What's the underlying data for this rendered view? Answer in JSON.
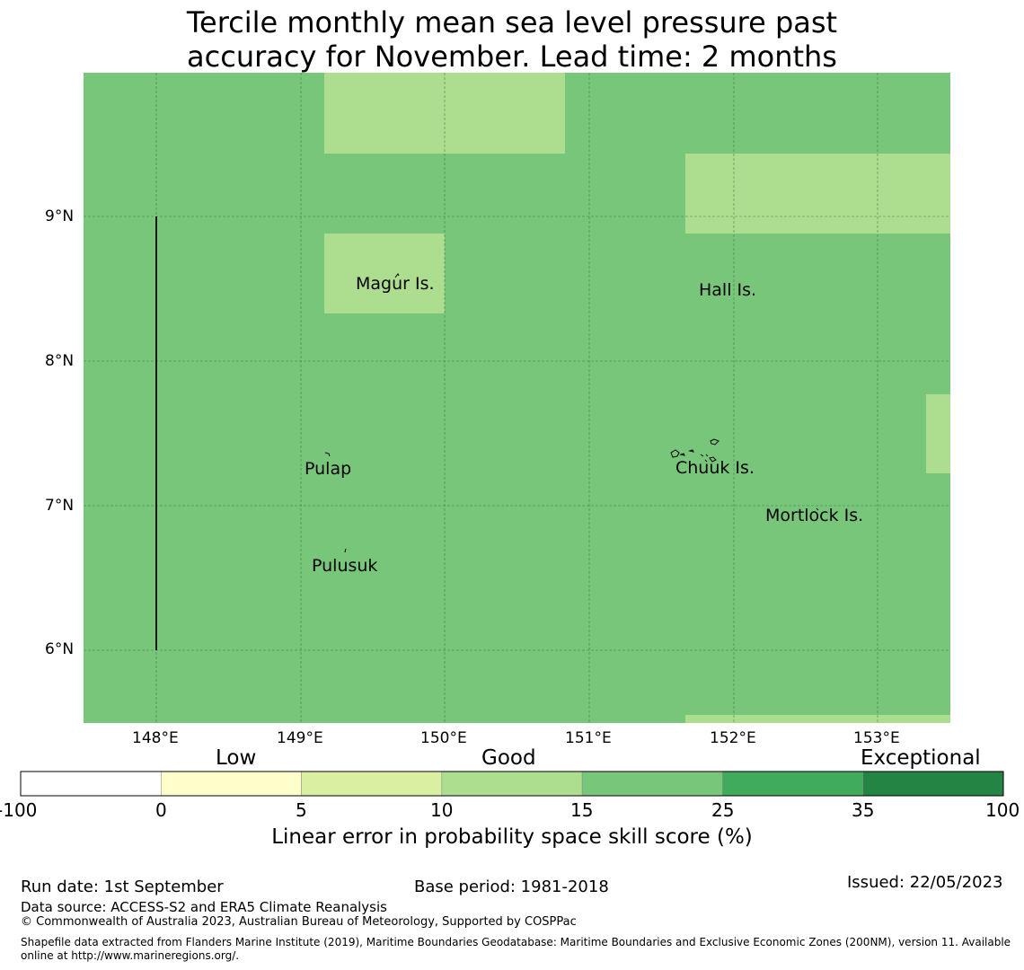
{
  "title": {
    "line1": "Tercile monthly mean sea level pressure past",
    "line2": "accuracy for November. Lead time: 2 months"
  },
  "map": {
    "lat_ticks": [
      "9°N",
      "8°N",
      "7°N",
      "6°N"
    ],
    "lon_ticks": [
      "148°E",
      "149°E",
      "150°E",
      "151°E",
      "152°E",
      "153°E"
    ],
    "islands": [
      "Magur Is.",
      "Hall Is.",
      "Pulap",
      "Chuuk Is.",
      "Mortlock Is.",
      "Pulusuk"
    ],
    "colors": {
      "base": "#78c679",
      "light": "#addd8e",
      "grid": "#2f6b3a"
    }
  },
  "colorbar": {
    "categories": [
      "Low",
      "Good",
      "Exceptional"
    ],
    "ticks": [
      "-100",
      "0",
      "5",
      "10",
      "15",
      "25",
      "35",
      "100"
    ],
    "colors": [
      "#ffffff",
      "#ffffcc",
      "#d9f0a3",
      "#addd8e",
      "#78c679",
      "#41ab5d",
      "#238443"
    ],
    "label": "Linear error in probability space skill score (%)"
  },
  "footer": {
    "run_date": "Run date: 1st September",
    "base_period": "Base period: 1981-2018",
    "issued": "Issued: 22/05/2023",
    "data_source": "Data source: ACCESS-S2 and ERA5 Climate Reanalysis",
    "copyright": "© Commonwealth of Australia 2023, Australian Bureau of Meteorology, Supported by COSPPac",
    "shapefile": "Shapefile data extracted from Flanders Marine Institute (2019), Maritime Boundaries Geodatabase: Maritime Boundaries and Exclusive Economic Zones (200NM), version 11. Available online at http://www.marineregions.org/."
  }
}
